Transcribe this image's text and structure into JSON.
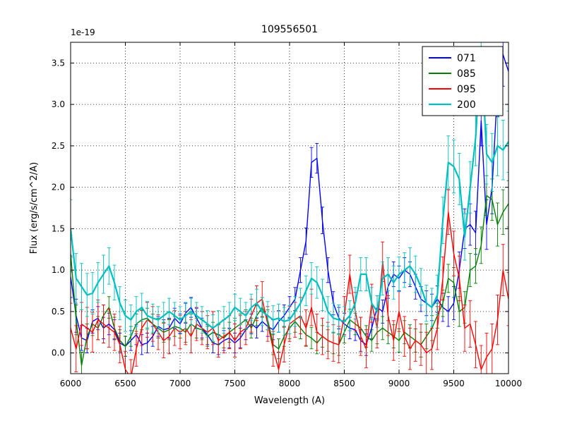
{
  "chart_data": {
    "type": "line",
    "title": "109556501",
    "xlabel": "Wavelength (A)",
    "ylabel": "Flux (erg/s/cm^2/A)",
    "offset_label": "1e-19",
    "xlim": [
      6000,
      10000
    ],
    "ylim": [
      -0.25,
      3.75
    ],
    "xticks": [
      6000,
      6500,
      7000,
      7500,
      8000,
      8500,
      9000,
      9500,
      10000
    ],
    "yticks": [
      0.0,
      0.5,
      1.0,
      1.5,
      2.0,
      2.5,
      3.0,
      3.5
    ],
    "grid": true,
    "grid_style": "dotted",
    "legend_position": "upper right",
    "legend_labels": [
      "071",
      "085",
      "095",
      "200"
    ],
    "x": [
      6000,
      6050,
      6100,
      6150,
      6200,
      6250,
      6300,
      6350,
      6400,
      6450,
      6500,
      6550,
      6600,
      6650,
      6700,
      6750,
      6800,
      6850,
      6900,
      6950,
      7000,
      7050,
      7100,
      7150,
      7200,
      7250,
      7300,
      7350,
      7400,
      7450,
      7500,
      7550,
      7600,
      7650,
      7700,
      7750,
      7800,
      7850,
      7900,
      7950,
      8000,
      8050,
      8100,
      8150,
      8200,
      8250,
      8300,
      8350,
      8400,
      8450,
      8500,
      8550,
      8600,
      8650,
      8700,
      8750,
      8800,
      8850,
      8900,
      8950,
      9000,
      9050,
      9100,
      9150,
      9200,
      9250,
      9300,
      9350,
      9400,
      9450,
      9500,
      9550,
      9600,
      9650,
      9700,
      9750,
      9800,
      9850,
      9900,
      9950,
      10000
    ],
    "series": [
      {
        "name": "071",
        "color": "#0000ff",
        "lw": 1.4,
        "values": [
          0.92,
          0.45,
          0.18,
          0.15,
          0.38,
          0.42,
          0.3,
          0.35,
          0.28,
          0.12,
          0.08,
          0.15,
          0.22,
          0.1,
          0.12,
          0.2,
          0.32,
          0.28,
          0.3,
          0.42,
          0.35,
          0.48,
          0.55,
          0.42,
          0.3,
          0.22,
          0.12,
          0.1,
          0.15,
          0.18,
          0.12,
          0.18,
          0.28,
          0.35,
          0.3,
          0.38,
          0.32,
          0.28,
          0.38,
          0.45,
          0.55,
          0.65,
          1.0,
          1.35,
          2.3,
          2.35,
          1.6,
          1.0,
          0.6,
          0.42,
          0.35,
          0.3,
          0.28,
          0.15,
          0.1,
          0.3,
          0.55,
          0.5,
          0.8,
          0.95,
          0.9,
          1.0,
          0.95,
          0.8,
          0.65,
          0.6,
          0.55,
          0.65,
          0.55,
          0.5,
          0.6,
          1.0,
          1.5,
          1.55,
          1.45,
          2.8,
          1.55,
          2.0,
          3.2,
          3.6,
          3.4
        ],
        "err": [
          0.25,
          0.2,
          0.15,
          0.15,
          0.14,
          0.14,
          0.13,
          0.13,
          0.12,
          0.12,
          0.12,
          0.12,
          0.12,
          0.12,
          0.12,
          0.12,
          0.12,
          0.12,
          0.12,
          0.12,
          0.12,
          0.12,
          0.12,
          0.12,
          0.12,
          0.12,
          0.12,
          0.12,
          0.12,
          0.12,
          0.12,
          0.12,
          0.12,
          0.12,
          0.12,
          0.12,
          0.12,
          0.12,
          0.13,
          0.13,
          0.13,
          0.14,
          0.15,
          0.16,
          0.18,
          0.18,
          0.16,
          0.15,
          0.14,
          0.13,
          0.13,
          0.13,
          0.13,
          0.13,
          0.13,
          0.13,
          0.14,
          0.14,
          0.14,
          0.15,
          0.15,
          0.15,
          0.15,
          0.15,
          0.15,
          0.15,
          0.16,
          0.16,
          0.17,
          0.18,
          0.2,
          0.22,
          0.24,
          0.25,
          0.26,
          0.3,
          0.3,
          0.32,
          0.35,
          0.38,
          0.4
        ]
      },
      {
        "name": "085",
        "color": "#007f00",
        "lw": 1.4,
        "values": [
          1.2,
          0.4,
          -0.15,
          0.2,
          0.35,
          0.3,
          0.45,
          0.55,
          0.3,
          0.15,
          0.08,
          0.2,
          0.35,
          0.4,
          0.42,
          0.35,
          0.3,
          0.25,
          0.28,
          0.32,
          0.3,
          0.25,
          0.35,
          0.3,
          0.28,
          0.2,
          0.25,
          0.22,
          0.18,
          0.25,
          0.3,
          0.35,
          0.4,
          0.3,
          0.45,
          0.55,
          0.4,
          0.1,
          0.05,
          0.2,
          0.3,
          0.38,
          0.3,
          0.22,
          0.18,
          0.12,
          0.2,
          0.15,
          0.12,
          0.1,
          0.25,
          0.4,
          0.35,
          0.3,
          0.2,
          0.15,
          0.25,
          0.3,
          0.25,
          0.2,
          0.15,
          0.25,
          0.2,
          0.15,
          0.1,
          0.2,
          0.3,
          0.45,
          0.6,
          0.9,
          0.85,
          0.5,
          0.55,
          1.0,
          1.05,
          1.3,
          1.9,
          1.85,
          1.55,
          1.7,
          1.8
        ],
        "err": [
          0.22,
          0.18,
          0.16,
          0.15,
          0.14,
          0.14,
          0.13,
          0.13,
          0.13,
          0.13,
          0.12,
          0.12,
          0.12,
          0.12,
          0.12,
          0.12,
          0.12,
          0.12,
          0.12,
          0.12,
          0.12,
          0.12,
          0.12,
          0.12,
          0.12,
          0.12,
          0.12,
          0.12,
          0.12,
          0.12,
          0.12,
          0.12,
          0.12,
          0.12,
          0.12,
          0.12,
          0.12,
          0.12,
          0.12,
          0.12,
          0.13,
          0.13,
          0.13,
          0.13,
          0.13,
          0.13,
          0.13,
          0.13,
          0.13,
          0.13,
          0.13,
          0.13,
          0.13,
          0.13,
          0.13,
          0.13,
          0.14,
          0.14,
          0.14,
          0.14,
          0.14,
          0.14,
          0.14,
          0.14,
          0.15,
          0.15,
          0.15,
          0.15,
          0.16,
          0.17,
          0.18,
          0.18,
          0.19,
          0.2,
          0.21,
          0.22,
          0.24,
          0.25,
          0.26,
          0.27,
          0.28
        ]
      },
      {
        "name": "095",
        "color": "#ff0000",
        "lw": 1.4,
        "values": [
          0.3,
          0.05,
          0.35,
          0.3,
          0.25,
          0.4,
          0.35,
          0.3,
          0.25,
          0.1,
          -0.2,
          -0.3,
          0.05,
          0.3,
          0.4,
          0.35,
          0.25,
          0.15,
          0.2,
          0.3,
          0.25,
          0.3,
          0.2,
          0.35,
          0.3,
          0.25,
          0.3,
          0.15,
          0.2,
          0.25,
          0.15,
          0.25,
          0.3,
          0.45,
          0.6,
          0.65,
          0.35,
          0.05,
          -0.2,
          0.1,
          0.35,
          0.4,
          0.45,
          0.3,
          0.55,
          0.25,
          0.2,
          0.15,
          0.12,
          0.1,
          0.45,
          0.95,
          0.5,
          0.2,
          0.05,
          0.6,
          0.3,
          1.1,
          0.45,
          0.15,
          0.5,
          0.2,
          0.05,
          0.15,
          0.1,
          0.0,
          0.05,
          0.3,
          0.9,
          1.7,
          1.2,
          0.9,
          0.3,
          0.35,
          0.1,
          -0.2,
          -0.05,
          0.05,
          0.4,
          1.0,
          0.65
        ],
        "err": [
          0.3,
          0.28,
          0.26,
          0.25,
          0.24,
          0.24,
          0.23,
          0.23,
          0.22,
          0.22,
          0.22,
          0.22,
          0.21,
          0.21,
          0.21,
          0.21,
          0.21,
          0.21,
          0.21,
          0.21,
          0.2,
          0.2,
          0.2,
          0.2,
          0.2,
          0.2,
          0.2,
          0.2,
          0.2,
          0.2,
          0.2,
          0.2,
          0.2,
          0.2,
          0.21,
          0.21,
          0.21,
          0.21,
          0.21,
          0.21,
          0.21,
          0.21,
          0.22,
          0.22,
          0.22,
          0.22,
          0.22,
          0.22,
          0.22,
          0.22,
          0.23,
          0.23,
          0.23,
          0.23,
          0.23,
          0.23,
          0.24,
          0.24,
          0.24,
          0.24,
          0.24,
          0.24,
          0.25,
          0.25,
          0.25,
          0.25,
          0.25,
          0.26,
          0.26,
          0.27,
          0.27,
          0.27,
          0.28,
          0.28,
          0.28,
          0.29,
          0.29,
          0.3,
          0.3,
          0.31,
          0.32
        ]
      },
      {
        "name": "200",
        "color": "#00bfbf",
        "lw": 2.2,
        "values": [
          1.5,
          0.9,
          0.8,
          0.7,
          0.72,
          0.85,
          0.95,
          1.05,
          0.85,
          0.6,
          0.45,
          0.4,
          0.5,
          0.55,
          0.45,
          0.42,
          0.4,
          0.45,
          0.5,
          0.45,
          0.4,
          0.45,
          0.5,
          0.45,
          0.4,
          0.35,
          0.3,
          0.35,
          0.4,
          0.45,
          0.55,
          0.5,
          0.45,
          0.55,
          0.6,
          0.5,
          0.45,
          0.4,
          0.42,
          0.38,
          0.4,
          0.5,
          0.6,
          0.75,
          0.9,
          0.85,
          0.7,
          0.5,
          0.42,
          0.4,
          0.38,
          0.45,
          0.6,
          0.95,
          0.95,
          0.6,
          0.5,
          0.9,
          0.95,
          0.85,
          0.95,
          1.0,
          1.05,
          0.95,
          0.8,
          0.6,
          0.55,
          0.7,
          1.6,
          2.3,
          2.25,
          2.1,
          1.4,
          2.0,
          2.6,
          3.7,
          2.4,
          2.3,
          2.5,
          2.45,
          2.55
        ],
        "err": [
          0.35,
          0.3,
          0.28,
          0.26,
          0.25,
          0.24,
          0.23,
          0.22,
          0.21,
          0.2,
          0.19,
          0.18,
          0.18,
          0.17,
          0.17,
          0.17,
          0.16,
          0.16,
          0.16,
          0.16,
          0.16,
          0.16,
          0.16,
          0.16,
          0.16,
          0.16,
          0.16,
          0.16,
          0.16,
          0.16,
          0.16,
          0.16,
          0.16,
          0.16,
          0.17,
          0.17,
          0.17,
          0.17,
          0.17,
          0.17,
          0.17,
          0.18,
          0.18,
          0.18,
          0.19,
          0.19,
          0.19,
          0.18,
          0.18,
          0.18,
          0.18,
          0.18,
          0.19,
          0.2,
          0.2,
          0.19,
          0.19,
          0.2,
          0.2,
          0.2,
          0.21,
          0.21,
          0.22,
          0.22,
          0.22,
          0.22,
          0.23,
          0.24,
          0.28,
          0.32,
          0.32,
          0.31,
          0.28,
          0.31,
          0.34,
          0.4,
          0.36,
          0.35,
          0.36,
          0.36,
          0.37
        ]
      }
    ]
  }
}
